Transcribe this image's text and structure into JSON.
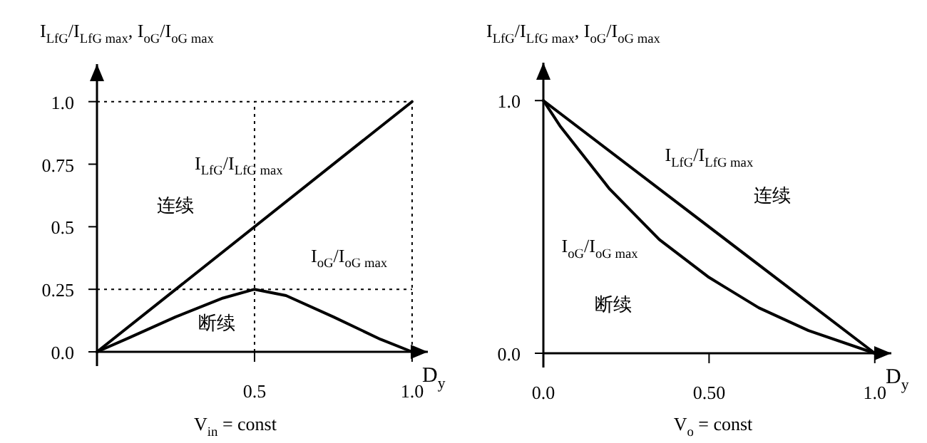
{
  "chart_data": [
    {
      "type": "line",
      "ylabel": "I$_{LfG}$/I$_{LfG max}$, I$_{oG}$/I$_{oG max}$",
      "xlabel": "D$_{y}$",
      "xlim": [
        0,
        1.05
      ],
      "ylim": [
        0,
        1.15
      ],
      "xticks": [
        {
          "value": 0.5,
          "label": "0.5"
        },
        {
          "value": 1,
          "label": "1.0"
        }
      ],
      "yticks": [
        {
          "value": 0,
          "label": "0.0"
        },
        0.25,
        {
          "value": 0.5,
          "label": "0.5"
        },
        0.75,
        {
          "value": 1,
          "label": "1.0"
        }
      ],
      "series": [
        {
          "name": "I$_{LfG}$/I$_{LfG max}$",
          "color": "#000000",
          "x": [
            0,
            1
          ],
          "values": [
            0,
            1
          ]
        },
        {
          "name": "I$_{oG}$/I$_{oG max}$",
          "color": "#000000",
          "x": [
            0,
            0.1,
            0.25,
            0.4,
            0.5,
            0.6,
            0.75,
            0.9,
            1
          ],
          "values": [
            0,
            0.055,
            0.14,
            0.215,
            0.25,
            0.225,
            0.14,
            0.05,
            0
          ]
        }
      ],
      "ref_lines": [
        {
          "axis": "y",
          "value": 1,
          "line_style": "dotted"
        },
        {
          "axis": "x",
          "value": 1,
          "line_style": "dotted"
        },
        {
          "axis": "y",
          "value": 0.25,
          "line_style": "dotted"
        },
        {
          "axis": "x",
          "value": 0.5,
          "line_style": "dotted"
        }
      ],
      "annotations": [
        "V$_{in}$ = const",
        "连续",
        "断续"
      ],
      "grid": false
    },
    {
      "type": "line",
      "ylabel": "I$_{LfG}$/I$_{LfG max}$, I$_{oG}$/I$_{oG max}$",
      "xlabel": "D$_{y}$",
      "xlim": [
        0,
        1.05
      ],
      "ylim": [
        0,
        1.15
      ],
      "xticks": [
        {
          "value": 0,
          "label": "0.0"
        },
        {
          "value": 0.5,
          "label": "0.50"
        },
        {
          "value": 1,
          "label": "1.0"
        }
      ],
      "yticks": [
        {
          "value": 0,
          "label": "0.0"
        },
        {
          "value": 1,
          "label": "1.0"
        }
      ],
      "series": [
        {
          "name": "I$_{LfG}$/I$_{LfG max}$",
          "color": "#000000",
          "x": [
            0,
            1
          ],
          "values": [
            1,
            0
          ]
        },
        {
          "name": "I$_{oG}$/I$_{oG max}$",
          "color": "#000000",
          "x": [
            0,
            0.05,
            0.2,
            0.35,
            0.5,
            0.65,
            0.8,
            1
          ],
          "values": [
            1,
            0.9,
            0.65,
            0.45,
            0.3,
            0.18,
            0.09,
            0
          ]
        }
      ],
      "annotations": [
        "V$_{o}$ = const",
        "连续",
        "断续"
      ],
      "grid": false
    }
  ]
}
